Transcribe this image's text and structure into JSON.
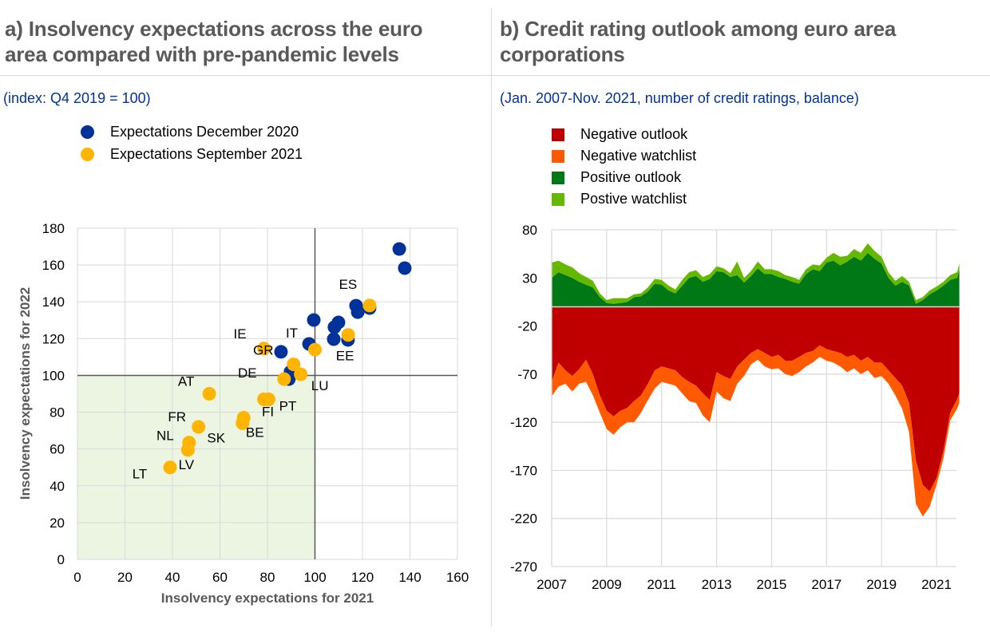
{
  "panel_a": {
    "title_line1": "a) Insolvency expectations across the euro",
    "title_line2": "area compared with pre-pandemic levels",
    "subtitle": "(index: Q4 2019 = 100)"
  },
  "panel_b": {
    "title_line1": "b) Credit rating outlook among euro area",
    "title_line2": "corporations",
    "subtitle": "(Jan. 2007-Nov. 2021, number of credit ratings, balance)"
  },
  "colors": {
    "dec2020": "#003299",
    "sep2021": "#FFB400",
    "negative_outlook": "#C00000",
    "negative_watchlist": "#FF5A00",
    "positive_outlook": "#007816",
    "positive_watchlist": "#65B800",
    "shaded_quadrant": "#EBF5E1",
    "title": "#595959",
    "subtitle": "#003299"
  },
  "chart_data": [
    {
      "type": "scatter",
      "title": "Insolvency expectations across the euro area compared with pre-pandemic levels",
      "xlabel": "Insolvency expectations for 2021",
      "ylabel": "Insolvency expectations for 2022",
      "xlim": [
        0,
        160
      ],
      "ylim": [
        0,
        180
      ],
      "xticks": [
        "0",
        "20",
        "40",
        "60",
        "80",
        "100",
        "120",
        "140",
        "160"
      ],
      "yticks": [
        "0",
        "20",
        "40",
        "60",
        "80",
        "100",
        "120",
        "140",
        "160",
        "180"
      ],
      "reference_lines": {
        "x": 100,
        "y": 100
      },
      "shaded_region": {
        "x": [
          0,
          100
        ],
        "y": [
          0,
          100
        ]
      },
      "grid": true,
      "legend_position": "top-left",
      "series": [
        {
          "name": "Expectations December 2020",
          "points": [
            {
              "x": 135.5,
              "y": 168.7
            },
            {
              "x": 137.8,
              "y": 158.3
            },
            {
              "x": 117.3,
              "y": 137.9
            },
            {
              "x": 118.0,
              "y": 134.4
            },
            {
              "x": 123.0,
              "y": 136.6
            },
            {
              "x": 99.5,
              "y": 130.1
            },
            {
              "x": 109.9,
              "y": 128.8
            },
            {
              "x": 108.2,
              "y": 126.2
            },
            {
              "x": 107.9,
              "y": 119.7
            },
            {
              "x": 113.9,
              "y": 119.3
            },
            {
              "x": 97.5,
              "y": 117.1
            },
            {
              "x": 85.7,
              "y": 112.8
            },
            {
              "x": 89.7,
              "y": 101.9
            },
            {
              "x": 89.0,
              "y": 98.0
            }
          ]
        },
        {
          "name": "Expectations September 2021",
          "points": [
            {
              "label": "IE",
              "x": 78.5,
              "y": 114.6
            },
            {
              "label": "GR",
              "x": 91.0,
              "y": 106.0
            },
            {
              "label": "DE",
              "x": 87.0,
              "y": 98.0
            },
            {
              "label": "LU",
              "x": 94.0,
              "y": 100.6
            },
            {
              "label": "ES",
              "x": 123.0,
              "y": 138.0
            },
            {
              "label": "EE",
              "x": 114.0,
              "y": 122.0
            },
            {
              "label": "IT",
              "x": 100.0,
              "y": 114.0
            },
            {
              "label": "AT",
              "x": 55.5,
              "y": 90.0
            },
            {
              "label": "FR",
              "x": 51.0,
              "y": 72.0
            },
            {
              "label": "NL",
              "x": 47.0,
              "y": 63.5
            },
            {
              "label": "LV",
              "x": 46.5,
              "y": 59.5
            },
            {
              "label": "LT",
              "x": 39.0,
              "y": 50.0
            },
            {
              "label": "SK",
              "x": 69.5,
              "y": 74.0
            },
            {
              "label": "BE",
              "x": 70.0,
              "y": 77.0
            },
            {
              "label": "FI",
              "x": 78.5,
              "y": 87.0
            },
            {
              "label": "PT",
              "x": 80.5,
              "y": 87.0
            }
          ]
        }
      ]
    },
    {
      "type": "area",
      "stacked": true,
      "title": "Credit rating outlook among euro area corporations",
      "xlabel": "",
      "ylabel": "",
      "xlim": [
        2007,
        2021.9
      ],
      "ylim": [
        -270,
        80
      ],
      "xticks": [
        "2007",
        "2009",
        "2011",
        "2013",
        "2015",
        "2017",
        "2019",
        "2021"
      ],
      "yticks": [
        "80",
        "30",
        "-20",
        "-70",
        "-120",
        "-170",
        "-220",
        "-270"
      ],
      "grid": true,
      "legend_position": "top-left",
      "x": [
        2007.0,
        2007.25,
        2007.5,
        2007.75,
        2008.0,
        2008.25,
        2008.5,
        2008.75,
        2009.0,
        2009.25,
        2009.5,
        2009.75,
        2010.0,
        2010.25,
        2010.5,
        2010.75,
        2011.0,
        2011.25,
        2011.5,
        2011.75,
        2012.0,
        2012.25,
        2012.5,
        2012.75,
        2013.0,
        2013.25,
        2013.5,
        2013.75,
        2014.0,
        2014.25,
        2014.5,
        2014.75,
        2015.0,
        2015.25,
        2015.5,
        2015.75,
        2016.0,
        2016.25,
        2016.5,
        2016.75,
        2017.0,
        2017.25,
        2017.5,
        2017.75,
        2018.0,
        2018.25,
        2018.5,
        2018.75,
        2019.0,
        2019.25,
        2019.5,
        2019.75,
        2020.0,
        2020.25,
        2020.5,
        2020.75,
        2021.0,
        2021.25,
        2021.5,
        2021.75,
        2021.83
      ],
      "series": [
        {
          "name": "Negative outlook",
          "values": [
            -78,
            -58,
            -66,
            -72,
            -65,
            -55,
            -70,
            -92,
            -108,
            -114,
            -108,
            -105,
            -98,
            -92,
            -80,
            -66,
            -62,
            -64,
            -66,
            -73,
            -78,
            -82,
            -90,
            -97,
            -68,
            -72,
            -75,
            -62,
            -55,
            -48,
            -44,
            -48,
            -52,
            -50,
            -56,
            -56,
            -52,
            -48,
            -46,
            -40,
            -44,
            -46,
            -48,
            -52,
            -50,
            -56,
            -52,
            -58,
            -58,
            -66,
            -74,
            -82,
            -100,
            -160,
            -185,
            -192,
            -178,
            -150,
            -110,
            -96,
            -90
          ]
        },
        {
          "name": "Negative watchlist",
          "values": [
            -15,
            -25,
            -14,
            -16,
            -15,
            -23,
            -22,
            -18,
            -19,
            -19,
            -17,
            -15,
            -22,
            -18,
            -17,
            -19,
            -16,
            -16,
            -16,
            -17,
            -20,
            -18,
            -23,
            -23,
            -20,
            -23,
            -23,
            -18,
            -17,
            -12,
            -11,
            -14,
            -13,
            -14,
            -14,
            -16,
            -16,
            -14,
            -12,
            -12,
            -12,
            -12,
            -14,
            -16,
            -14,
            -14,
            -14,
            -16,
            -14,
            -14,
            -18,
            -24,
            -30,
            -45,
            -33,
            -16,
            -7,
            -8,
            -8,
            -10,
            -10
          ]
        },
        {
          "name": "Positive outlook",
          "values": [
            30,
            36,
            33,
            30,
            26,
            23,
            20,
            10,
            4,
            3,
            4,
            5,
            10,
            11,
            16,
            24,
            23,
            17,
            14,
            22,
            30,
            32,
            26,
            29,
            37,
            36,
            31,
            33,
            25,
            32,
            40,
            34,
            34,
            31,
            29,
            26,
            24,
            34,
            39,
            37,
            46,
            48,
            43,
            47,
            52,
            48,
            56,
            50,
            45,
            30,
            22,
            26,
            22,
            3,
            7,
            13,
            17,
            22,
            28,
            30,
            38
          ]
        },
        {
          "name": "Postive watchlist",
          "values": [
            16,
            12,
            11,
            11,
            9,
            8,
            7,
            4,
            3,
            6,
            5,
            4,
            3,
            3,
            4,
            5,
            5,
            5,
            4,
            6,
            6,
            6,
            5,
            5,
            5,
            4,
            4,
            14,
            5,
            5,
            7,
            5,
            5,
            6,
            4,
            5,
            4,
            5,
            5,
            6,
            5,
            8,
            9,
            6,
            8,
            8,
            10,
            8,
            7,
            6,
            5,
            6,
            4,
            4,
            3,
            4,
            4,
            4,
            5,
            6,
            7
          ]
        }
      ]
    }
  ]
}
